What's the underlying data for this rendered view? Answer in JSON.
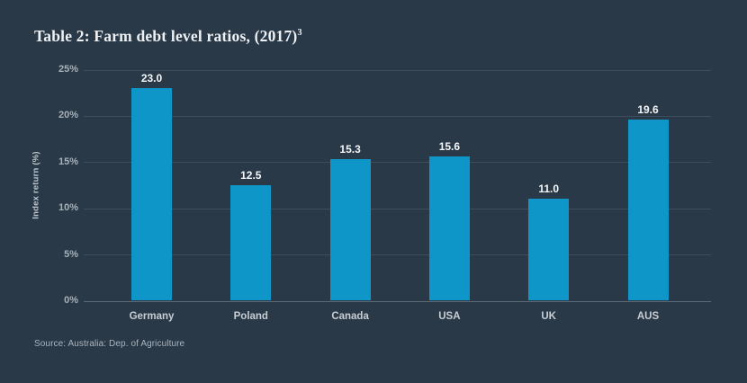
{
  "title": {
    "text": "Table 2: Farm debt level ratios, (2017)",
    "superscript": "3"
  },
  "chart_data": {
    "type": "bar",
    "categories": [
      "Germany",
      "Poland",
      "Canada",
      "USA",
      "UK",
      "AUS"
    ],
    "values": [
      23.0,
      12.5,
      15.3,
      15.6,
      11.0,
      19.6
    ],
    "value_labels": [
      "23.0",
      "12.5",
      "15.3",
      "15.6",
      "11.0",
      "19.6"
    ],
    "title": "Table 2: Farm debt level ratios, (2017)³",
    "xlabel": "",
    "ylabel": "Index return (%)",
    "ylim": [
      0,
      25
    ],
    "yticks": [
      0,
      5,
      10,
      15,
      20,
      25
    ],
    "ytick_labels": [
      "0%",
      "5%",
      "10%",
      "15%",
      "20%",
      "25%"
    ],
    "grid": true,
    "legend": "none",
    "bar_color": "#0e96c8",
    "background_color": "#2a3948",
    "gridline_color": "#3d4d5b"
  },
  "source": "Source: Australia: Dep. of Agriculture"
}
